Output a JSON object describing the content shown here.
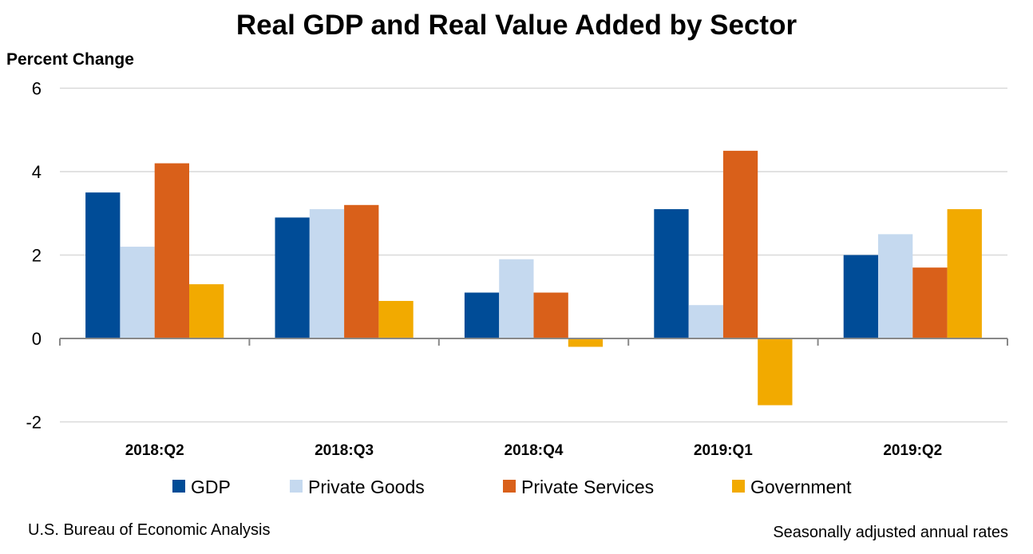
{
  "chart_data": {
    "type": "bar",
    "title": "Real GDP and Real Value Added by Sector",
    "ylabel": "Percent Change",
    "xlabel": "",
    "ylim": [
      -2,
      6
    ],
    "yticks": [
      "6",
      "4",
      "2",
      "0",
      "-2"
    ],
    "grid": true,
    "legend_position": "bottom",
    "categories": [
      "2018:Q2",
      "2018:Q3",
      "2018:Q4",
      "2019:Q1",
      "2019:Q2"
    ],
    "series": [
      {
        "name": "GDP",
        "color": "#004C97",
        "values": [
          3.5,
          2.9,
          1.1,
          3.1,
          2.0
        ]
      },
      {
        "name": "Private Goods",
        "color": "#C5D9EF",
        "values": [
          2.2,
          3.1,
          1.9,
          0.8,
          2.5
        ]
      },
      {
        "name": "Private Services",
        "color": "#D9601A",
        "values": [
          4.2,
          3.2,
          1.1,
          4.5,
          1.7
        ]
      },
      {
        "name": "Government",
        "color": "#F2AA00",
        "values": [
          1.3,
          0.9,
          -0.2,
          -1.6,
          3.1
        ]
      }
    ]
  },
  "footer": {
    "source": "U.S. Bureau of Economic Analysis",
    "note": "Seasonally adjusted annual rates"
  }
}
